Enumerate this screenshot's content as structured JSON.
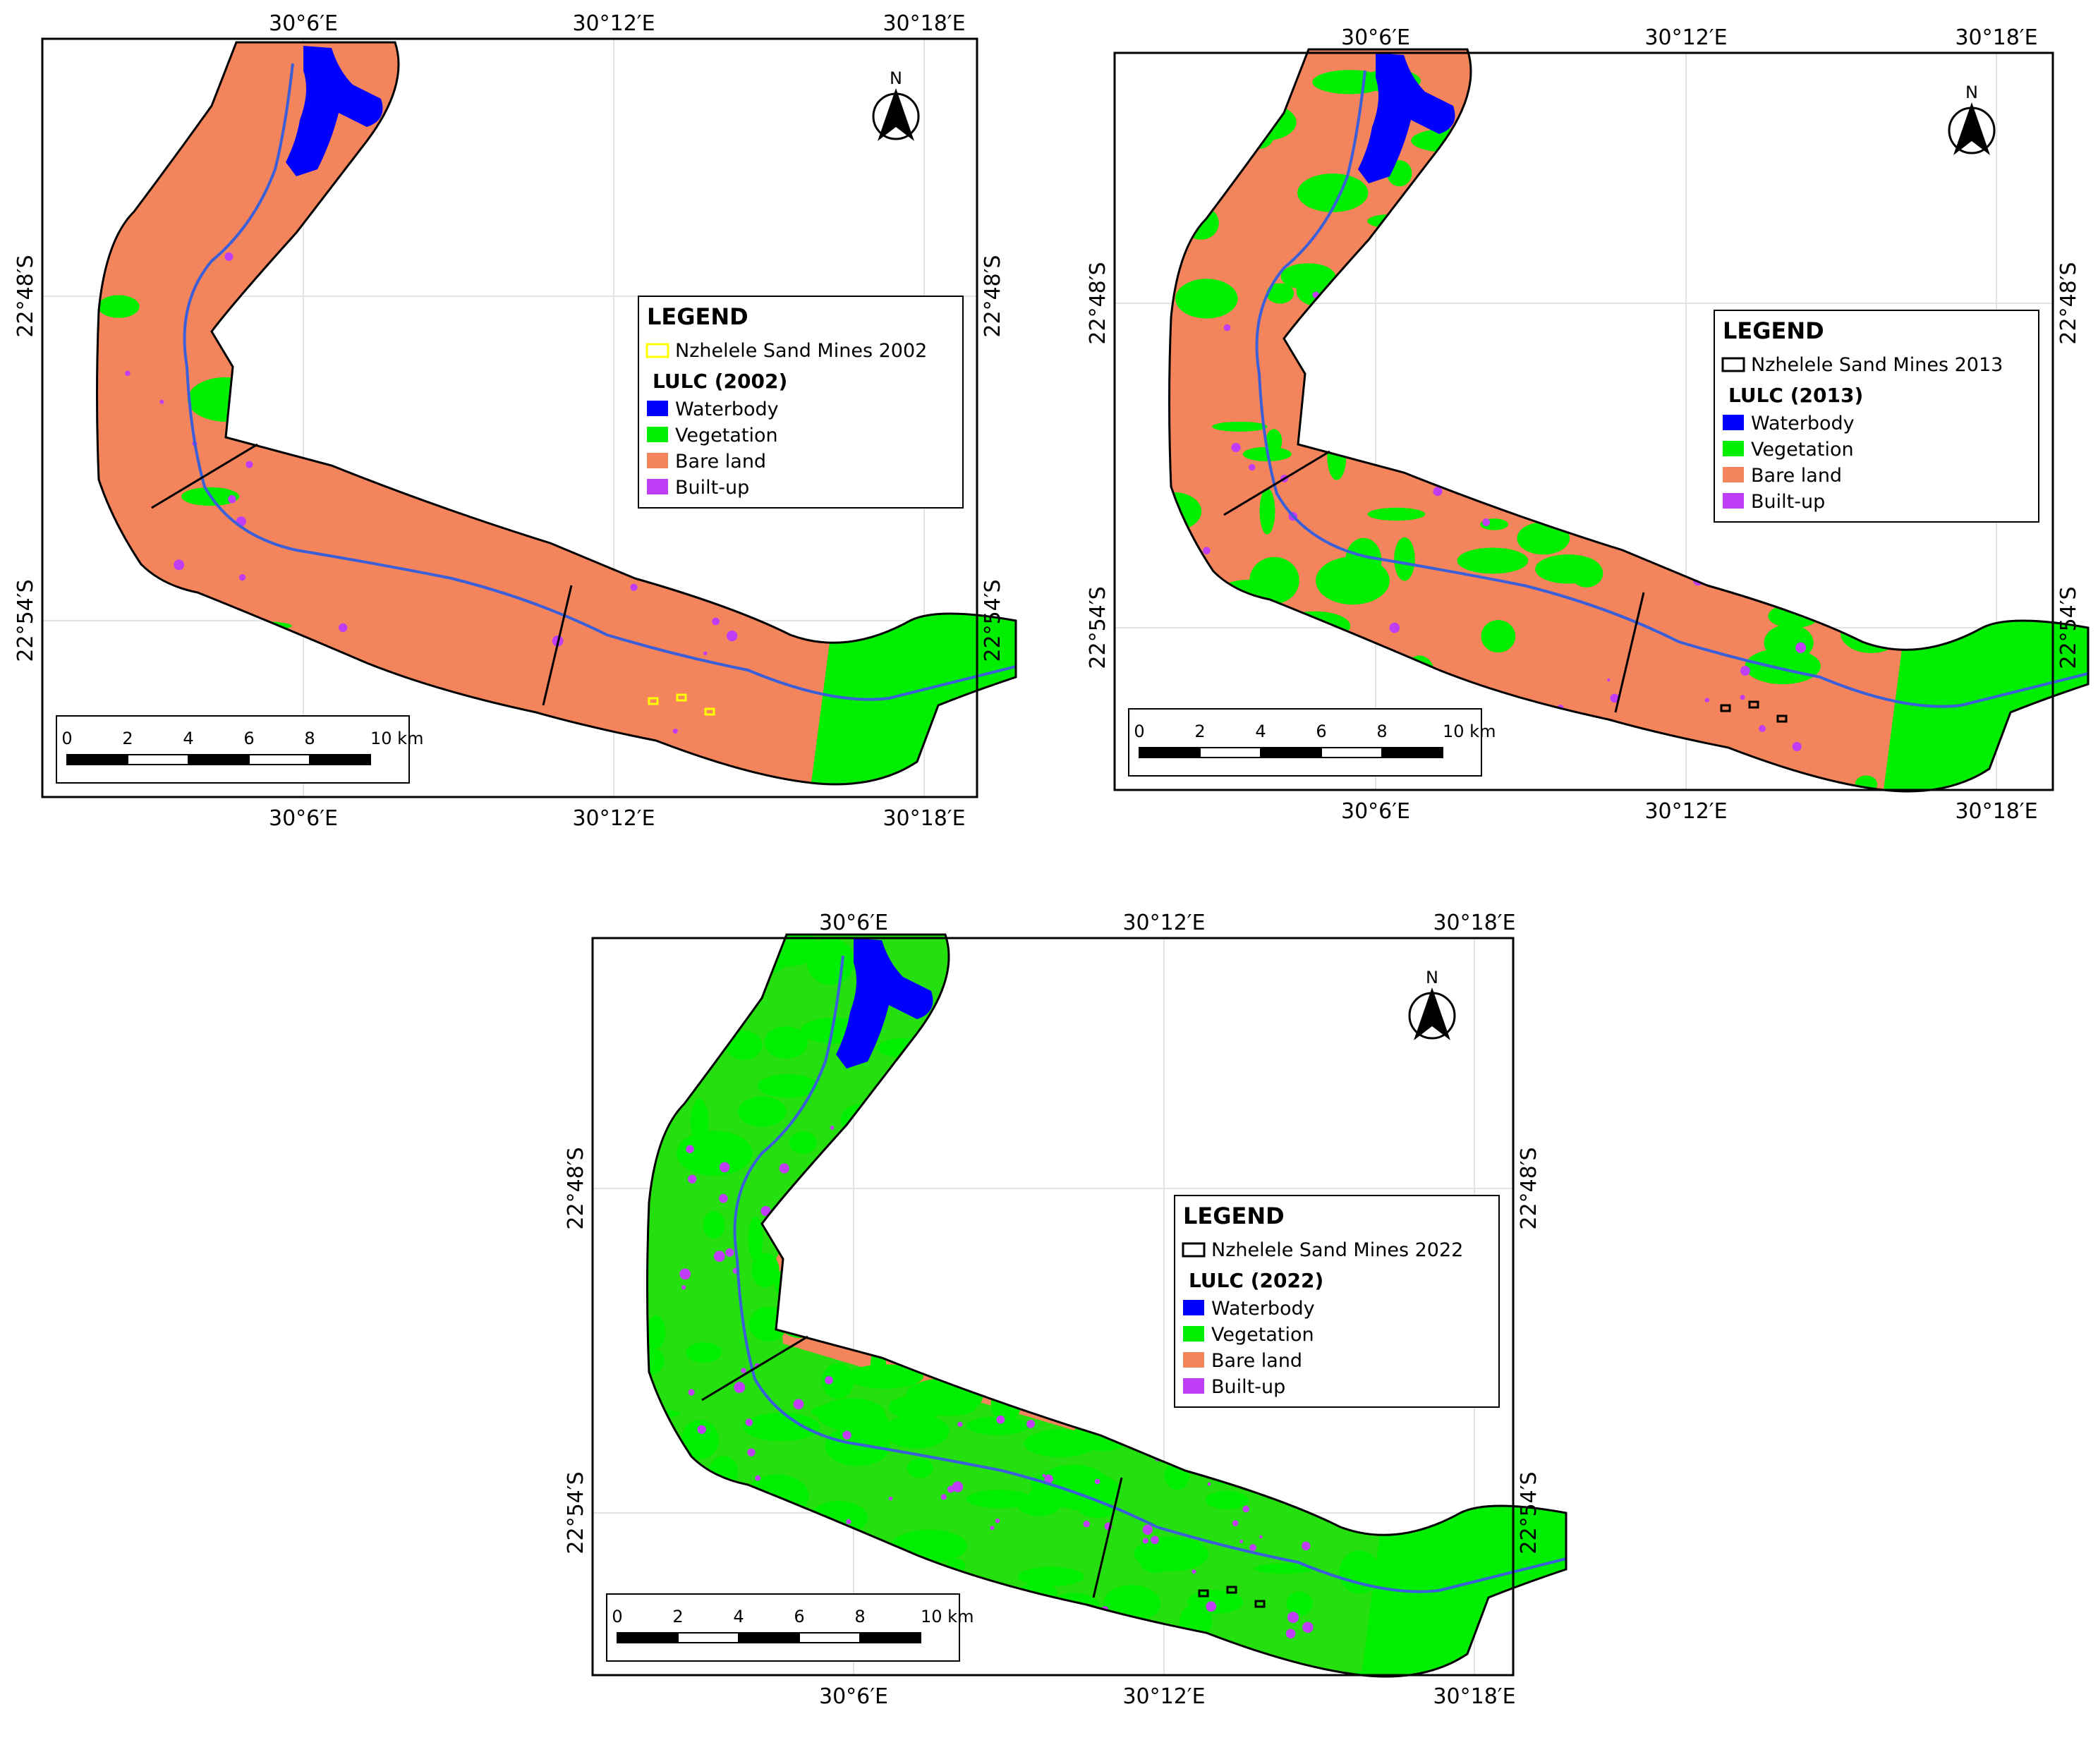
{
  "maps": [
    {
      "id": "map-2002",
      "x_ticks": [
        "30°6′E",
        "30°12′E",
        "30°18′E"
      ],
      "y_ticks": [
        "22°48′S",
        "22°54′S"
      ],
      "north_label": "N",
      "legend": {
        "title": "LEGEND",
        "site_label": "Nzhelele Sand Mines 2002",
        "site_color": "#ffff00",
        "lulc_title": "LULC (2002)",
        "classes": [
          {
            "label": "Waterbody",
            "color": "#0000ff"
          },
          {
            "label": "Vegetation",
            "color": "#00ee00"
          },
          {
            "label": "Bare land",
            "color": "#f4845c"
          },
          {
            "label": "Built-up",
            "color": "#bf3ef5"
          }
        ]
      },
      "scale": {
        "labels": [
          "0",
          "2",
          "4",
          "6",
          "8",
          "10 km"
        ]
      },
      "landcover_share": {
        "bare_land": "dominant",
        "vegetation": "east end",
        "waterbody": "reservoir"
      }
    },
    {
      "id": "map-2013",
      "x_ticks": [
        "30°6′E",
        "30°12′E",
        "30°18′E"
      ],
      "y_ticks": [
        "22°48′S",
        "22°54′S"
      ],
      "north_label": "N",
      "legend": {
        "title": "LEGEND",
        "site_label": "Nzhelele Sand Mines 2013",
        "site_color": "#000000",
        "lulc_title": "LULC (2013)",
        "classes": [
          {
            "label": "Waterbody",
            "color": "#0000ff"
          },
          {
            "label": "Vegetation",
            "color": "#00ee00"
          },
          {
            "label": "Bare land",
            "color": "#f4845c"
          },
          {
            "label": "Built-up",
            "color": "#bf3ef5"
          }
        ]
      },
      "scale": {
        "labels": [
          "0",
          "2",
          "4",
          "6",
          "8",
          "10 km"
        ]
      }
    },
    {
      "id": "map-2022",
      "x_ticks": [
        "30°6′E",
        "30°12′E",
        "30°18′E"
      ],
      "y_ticks": [
        "22°48′S",
        "22°54′S"
      ],
      "north_label": "N",
      "legend": {
        "title": "LEGEND",
        "site_label": "Nzhelele Sand Mines 2022",
        "site_color": "#000000",
        "lulc_title": "LULC (2022)",
        "classes": [
          {
            "label": "Waterbody",
            "color": "#0000ff"
          },
          {
            "label": "Vegetation",
            "color": "#00ee00"
          },
          {
            "label": "Bare land",
            "color": "#f4845c"
          },
          {
            "label": "Built-up",
            "color": "#bf3ef5"
          }
        ]
      },
      "scale": {
        "labels": [
          "0",
          "2",
          "4",
          "6",
          "8",
          "10 km"
        ]
      }
    }
  ]
}
